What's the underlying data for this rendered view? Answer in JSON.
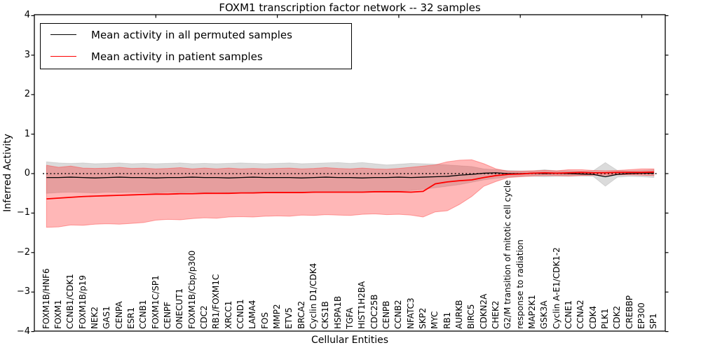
{
  "title": "FOXM1 transcription factor network -- 32 samples",
  "axes": {
    "ylabel": "Inferred Activity",
    "xlabel": "Cellular Entities",
    "yticks": [
      "4",
      "3",
      "2",
      "1",
      "0",
      "−1",
      "−2",
      "−3",
      "−4"
    ],
    "ytick_values": [
      4,
      3,
      2,
      1,
      0,
      -1,
      -2,
      -3,
      -4
    ]
  },
  "legend": {
    "items": [
      {
        "label": "Mean activity in all permuted samples",
        "color": "#000000"
      },
      {
        "label": "Mean activity in patient samples",
        "color": "#ff0000"
      }
    ]
  },
  "chart_data": {
    "type": "line",
    "title": "FOXM1 transcription factor network -- 32 samples",
    "xlabel": "Cellular Entities",
    "ylabel": "Inferred Activity",
    "ylim": [
      -4,
      4
    ],
    "grid": false,
    "legend_position": "upper left",
    "reference_line": {
      "y": 0,
      "style": "dotted",
      "color": "#000000"
    },
    "categories": [
      "FOXM1B/HNF6",
      "FOXM1",
      "CCNB1/CDK1",
      "FOXM1B/p19",
      "NEK2",
      "GAS1",
      "CENPA",
      "ESR1",
      "CCNB1",
      "FOXM1C/SP1",
      "CENPF",
      "ONECUT1",
      "FOXM1B/Cbp/p300",
      "CDC2",
      "RB1/FOXM1C",
      "XRCC1",
      "CCND1",
      "LAMA4",
      "FOS",
      "MMP2",
      "ETV5",
      "BRCA2",
      "Cyclin D1/CDK4",
      "CKS1B",
      "HSPA1B",
      "TGFA",
      "HIST1H2BA",
      "CDC25B",
      "CENPB",
      "CCNB2",
      "NFATC3",
      "SKP2",
      "MYC",
      "RB1",
      "AURKB",
      "BIRC5",
      "CDKN2A",
      "CHEK2",
      "G2/M transition of mitotic cell cycle",
      "response to radiation",
      "MAP2K1",
      "GSK3A",
      "Cyclin A-E1/CDK1-2",
      "CCNE1",
      "CCNA2",
      "CDK4",
      "PLK1",
      "CDK2",
      "CREBBP",
      "EP300",
      "SP1"
    ],
    "series": [
      {
        "name": "Mean activity in all permuted samples",
        "color": "#000000",
        "band_fill": "rgba(0,0,0,0.14)",
        "band_edge": "rgba(0,0,0,0.10)",
        "values": [
          -0.1,
          -0.1,
          -0.09,
          -0.1,
          -0.11,
          -0.1,
          -0.09,
          -0.1,
          -0.1,
          -0.11,
          -0.1,
          -0.1,
          -0.09,
          -0.1,
          -0.1,
          -0.11,
          -0.1,
          -0.09,
          -0.1,
          -0.1,
          -0.1,
          -0.11,
          -0.1,
          -0.09,
          -0.1,
          -0.1,
          -0.11,
          -0.1,
          -0.1,
          -0.09,
          -0.1,
          -0.09,
          -0.08,
          -0.07,
          -0.04,
          -0.02,
          0.01,
          0.02,
          0.0,
          0.0,
          0.01,
          0.0,
          0.01,
          0.0,
          -0.01,
          -0.02,
          -0.08,
          -0.02,
          0.0,
          0.01,
          0.01
        ],
        "band_upper": [
          0.3,
          0.27,
          0.26,
          0.27,
          0.25,
          0.26,
          0.27,
          0.25,
          0.26,
          0.25,
          0.26,
          0.27,
          0.25,
          0.26,
          0.25,
          0.26,
          0.27,
          0.26,
          0.25,
          0.26,
          0.27,
          0.25,
          0.26,
          0.27,
          0.28,
          0.26,
          0.28,
          0.25,
          0.22,
          0.24,
          0.26,
          0.25,
          0.24,
          0.22,
          0.2,
          0.18,
          0.12,
          0.1,
          0.08,
          0.07,
          0.07,
          0.1,
          0.07,
          0.07,
          0.06,
          0.07,
          0.28,
          0.08,
          0.07,
          0.08,
          0.1
        ],
        "band_lower": [
          -0.5,
          -0.48,
          -0.47,
          -0.48,
          -0.49,
          -0.47,
          -0.48,
          -0.47,
          -0.48,
          -0.49,
          -0.47,
          -0.48,
          -0.47,
          -0.48,
          -0.47,
          -0.48,
          -0.49,
          -0.47,
          -0.48,
          -0.47,
          -0.48,
          -0.47,
          -0.48,
          -0.47,
          -0.46,
          -0.47,
          -0.46,
          -0.45,
          -0.44,
          -0.44,
          -0.43,
          -0.4,
          -0.36,
          -0.32,
          -0.28,
          -0.22,
          -0.16,
          -0.12,
          -0.09,
          -0.07,
          -0.07,
          -0.08,
          -0.07,
          -0.07,
          -0.06,
          -0.07,
          -0.32,
          -0.09,
          -0.07,
          -0.08,
          -0.1
        ]
      },
      {
        "name": "Mean activity in patient samples",
        "color": "#ff0000",
        "band_fill": "rgba(255,30,30,0.32)",
        "band_edge": "rgba(255,60,60,0.45)",
        "values": [
          -0.64,
          -0.62,
          -0.6,
          -0.58,
          -0.57,
          -0.56,
          -0.55,
          -0.54,
          -0.53,
          -0.52,
          -0.52,
          -0.51,
          -0.51,
          -0.5,
          -0.5,
          -0.5,
          -0.49,
          -0.49,
          -0.48,
          -0.48,
          -0.48,
          -0.48,
          -0.47,
          -0.47,
          -0.47,
          -0.47,
          -0.47,
          -0.46,
          -0.46,
          -0.46,
          -0.47,
          -0.45,
          -0.26,
          -0.21,
          -0.18,
          -0.16,
          -0.1,
          -0.05,
          -0.02,
          -0.01,
          0.01,
          0.02,
          0.01,
          0.02,
          0.03,
          0.02,
          0.02,
          0.03,
          0.03,
          0.03,
          0.04
        ],
        "band_upper": [
          0.21,
          0.16,
          0.19,
          0.14,
          0.13,
          0.14,
          0.16,
          0.13,
          0.14,
          0.12,
          0.13,
          0.15,
          0.12,
          0.14,
          0.12,
          0.14,
          0.12,
          0.13,
          0.12,
          0.13,
          0.14,
          0.12,
          0.13,
          0.15,
          0.13,
          0.12,
          0.14,
          0.12,
          0.11,
          0.13,
          0.16,
          0.19,
          0.22,
          0.3,
          0.34,
          0.35,
          0.25,
          0.12,
          0.06,
          0.06,
          0.07,
          0.08,
          0.07,
          0.1,
          0.1,
          0.08,
          0.07,
          0.08,
          0.1,
          0.12,
          0.12
        ],
        "band_lower": [
          -1.36,
          -1.35,
          -1.3,
          -1.31,
          -1.28,
          -1.27,
          -1.28,
          -1.26,
          -1.24,
          -1.18,
          -1.16,
          -1.17,
          -1.14,
          -1.12,
          -1.13,
          -1.1,
          -1.09,
          -1.1,
          -1.08,
          -1.07,
          -1.08,
          -1.05,
          -1.06,
          -1.04,
          -1.05,
          -1.06,
          -1.03,
          -1.02,
          -1.04,
          -1.03,
          -1.05,
          -1.1,
          -0.97,
          -0.94,
          -0.78,
          -0.58,
          -0.32,
          -0.2,
          -0.1,
          -0.08,
          -0.06,
          -0.05,
          -0.05,
          -0.06,
          -0.05,
          -0.04,
          -0.04,
          -0.03,
          -0.03,
          -0.04,
          -0.05
        ]
      }
    ]
  }
}
